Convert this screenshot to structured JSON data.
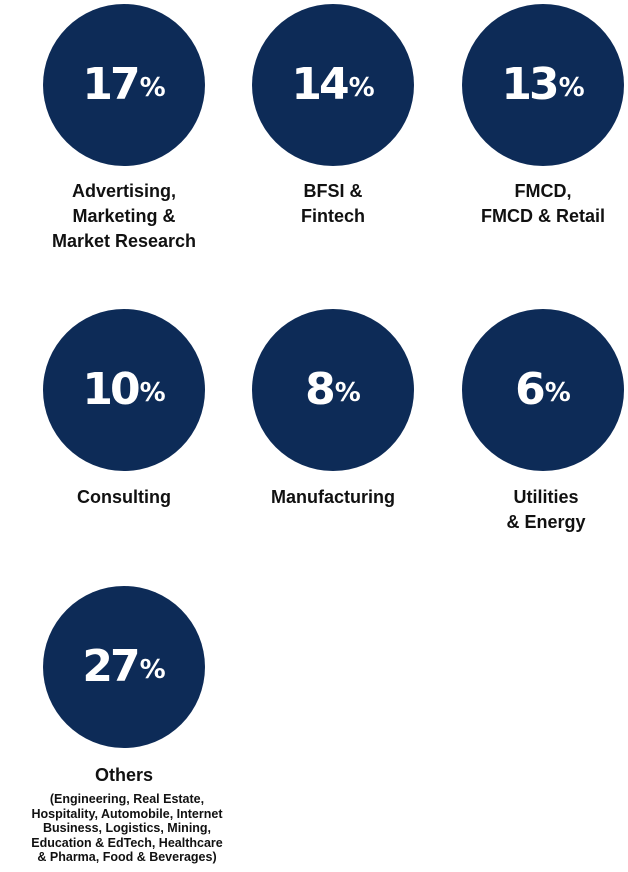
{
  "chart_data": {
    "type": "table",
    "colors": {
      "circle": "#0d2b57",
      "value_text": "#ffffff",
      "label_text": "#111111"
    },
    "percent_sign": "%",
    "items": [
      {
        "value": 17,
        "label": "Advertising,\nMarketing &\nMarket Research"
      },
      {
        "value": 14,
        "label": "BFSI &\nFintech"
      },
      {
        "value": 13,
        "label": "FMCD,\nFMCD & Retail"
      },
      {
        "value": 10,
        "label": "Consulting"
      },
      {
        "value": 8,
        "label": "Manufacturing"
      },
      {
        "value": 6,
        "label": "Utilities\n& Energy"
      },
      {
        "value": 27,
        "label": "Others",
        "note": "(Engineering, Real Estate,\nHospitality, Automobile, Internet\nBusiness, Logistics, Mining,\nEducation & EdTech, Healthcare\n& Pharma, Food & Beverages)"
      }
    ]
  }
}
